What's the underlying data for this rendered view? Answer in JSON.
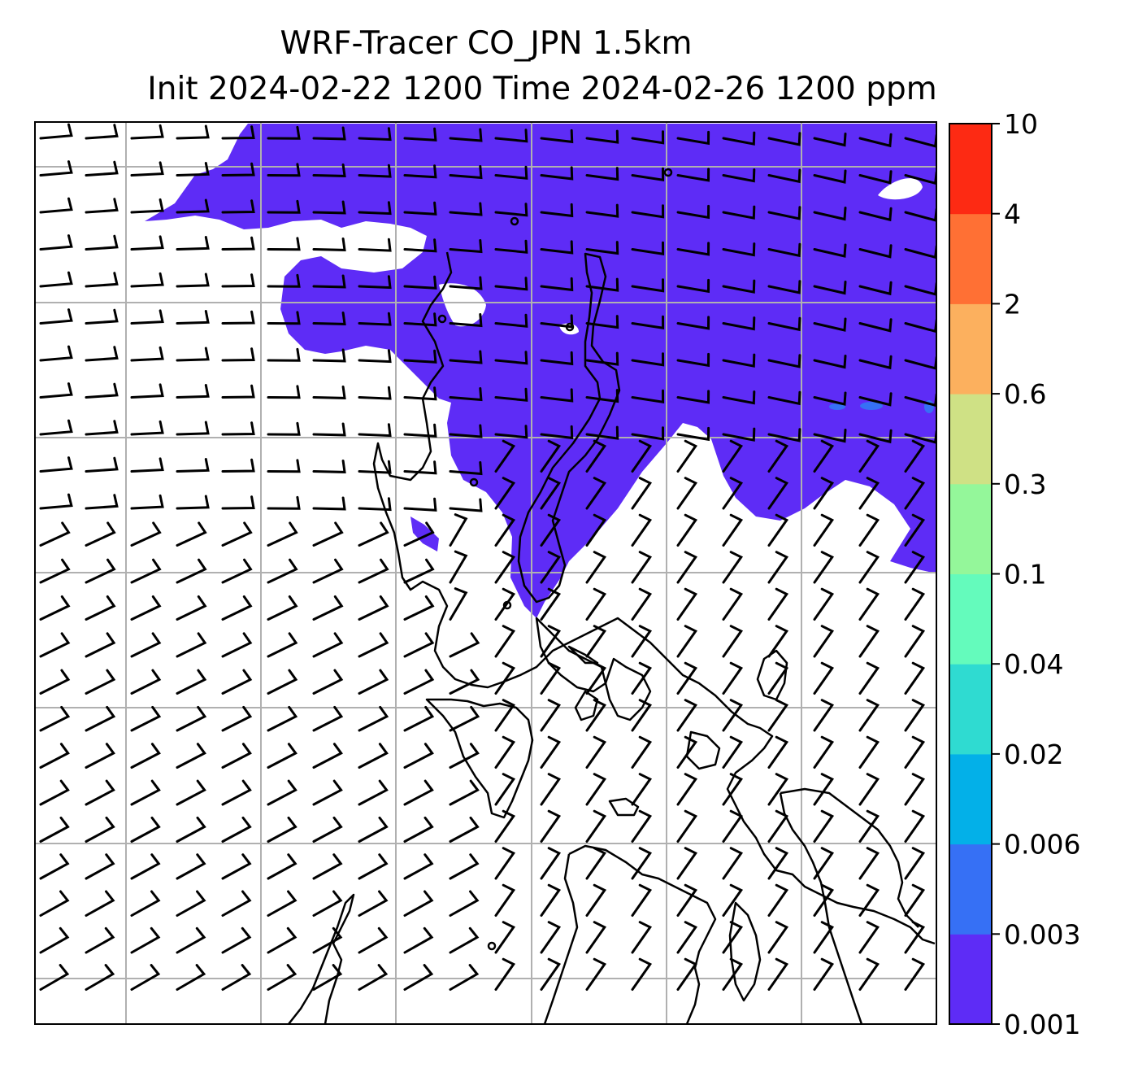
{
  "title": {
    "line1": "WRF-Tracer CO_JPN 1.5km",
    "line2": "Init 2024-02-22 1200 Time 2024-02-26 1200 ppm"
  },
  "colorbar": {
    "levels": [
      "0.001",
      "0.003",
      "0.006",
      "0.02",
      "0.04",
      "0.1",
      "0.3",
      "0.6",
      "2",
      "4",
      "10"
    ],
    "colors": [
      "#5e2cf6",
      "#3670f5",
      "#03b0e8",
      "#2fdbd1",
      "#64fbbc",
      "#94f79a",
      "#cfe185",
      "#fcb05e",
      "#ff7034",
      "#fd2a13"
    ]
  },
  "map": {
    "tracer_fill_color": "#5e2cf6",
    "tracer_patch_color": "#3670f5",
    "coastline_color": "#000000",
    "gridline_color": "#b0b0b0",
    "barb_color": "#000000"
  }
}
